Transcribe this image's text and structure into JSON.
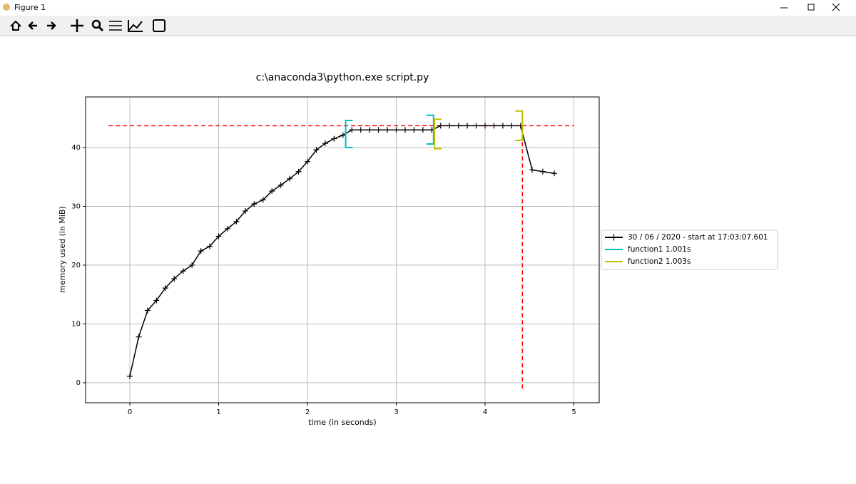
{
  "window": {
    "title": "Figure 1"
  },
  "chart_data": {
    "type": "line",
    "title": "c:\\anaconda3\\python.exe script.py",
    "x_label": "time (in seconds)",
    "y_label": "memory used (in MiB)",
    "xlim": [
      -0.498,
      5.285
    ],
    "ylim": [
      -3.4,
      48.6
    ],
    "xticks": [
      0,
      1,
      2,
      3,
      4,
      5
    ],
    "yticks": [
      0,
      10,
      20,
      30,
      40
    ],
    "grid": true,
    "legend": "outside right",
    "series": [
      {
        "name": "30 / 06 / 2020 - start at 17:03:07.601",
        "color": "#000000",
        "marker": "+",
        "x": [
          0,
          0.1,
          0.2,
          0.3,
          0.4,
          0.5,
          0.6,
          0.7,
          0.8,
          0.9,
          1.0,
          1.1,
          1.2,
          1.3,
          1.4,
          1.5,
          1.6,
          1.7,
          1.8,
          1.9,
          2.0,
          2.1,
          2.2,
          2.3,
          2.4,
          2.5,
          2.6,
          2.7,
          2.8,
          2.9,
          3.0,
          3.1,
          3.2,
          3.3,
          3.4,
          3.5,
          3.6,
          3.7,
          3.8,
          3.9,
          4.0,
          4.1,
          4.2,
          4.3,
          4.4,
          4.53,
          4.65,
          4.78
        ],
        "values": [
          1.1,
          7.8,
          12.3,
          14.0,
          16.1,
          17.7,
          19.0,
          20.0,
          22.4,
          23.2,
          24.9,
          26.2,
          27.4,
          29.2,
          30.4,
          31.1,
          32.6,
          33.6,
          34.7,
          35.9,
          37.6,
          39.6,
          40.7,
          41.5,
          42.1,
          43.0,
          43.0,
          43.0,
          43.0,
          43.0,
          43.0,
          43.0,
          43.0,
          43.0,
          43.0,
          43.7,
          43.7,
          43.7,
          43.7,
          43.7,
          43.7,
          43.7,
          43.7,
          43.7,
          43.7,
          36.2,
          35.9,
          35.6
        ]
      },
      {
        "name": "function1 1.001s",
        "type": "bracket",
        "color": "#00bfbf",
        "start": 2.43,
        "end": 3.42,
        "start_ylim": [
          40.0,
          44.6
        ],
        "end_ylim": [
          40.6,
          45.5
        ]
      },
      {
        "name": "function2 1.003s",
        "type": "bracket",
        "color": "#bfbf00",
        "start": 3.43,
        "end": 4.42,
        "start_ylim": [
          39.8,
          44.8
        ],
        "end_ylim": [
          41.2,
          46.2
        ]
      }
    ],
    "max_line": {
      "color": "#ff0000",
      "y": 43.7,
      "xlim": [
        -0.24,
        5.0
      ]
    },
    "max_time_line": {
      "color": "#ff0000",
      "x": 4.42,
      "ylim": [
        -1.0,
        43.7
      ]
    }
  }
}
